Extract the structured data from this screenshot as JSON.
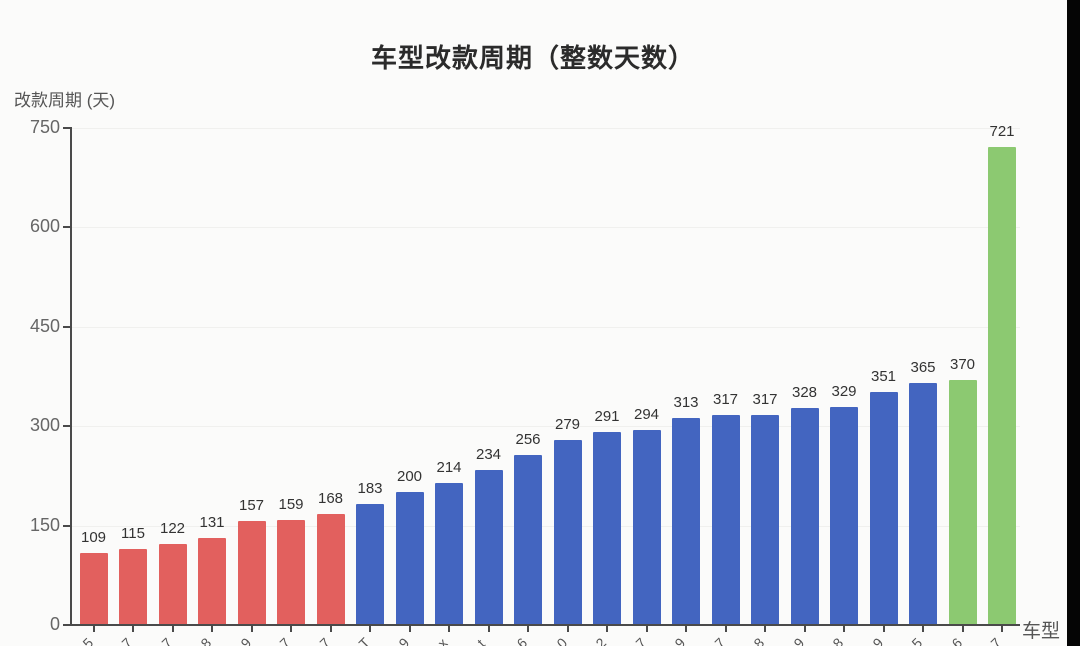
{
  "chart_data": {
    "type": "bar",
    "title": "车型改款周期（整数天数）",
    "ylabel": "改款周期 (天)",
    "xlabel": "车型",
    "ylim": [
      0,
      750
    ],
    "yticks": [
      0,
      150,
      300,
      450,
      600,
      750
    ],
    "grid": "faint-horizontal",
    "legend": "none",
    "values": [
      109,
      115,
      122,
      131,
      157,
      159,
      168,
      183,
      200,
      214,
      234,
      256,
      279,
      291,
      294,
      313,
      317,
      317,
      328,
      329,
      351,
      365,
      370,
      721
    ],
    "bar_color_groups": [
      "red",
      "red",
      "red",
      "red",
      "red",
      "red",
      "red",
      "blue",
      "blue",
      "blue",
      "blue",
      "blue",
      "blue",
      "blue",
      "blue",
      "blue",
      "blue",
      "blue",
      "blue",
      "blue",
      "blue",
      "blue",
      "green",
      "green"
    ],
    "colors": {
      "red": "#e2605e",
      "blue": "#4365c0",
      "green": "#8cc971",
      "axis": "#4a4a4a",
      "tick_text": "#666666",
      "value_text": "#333333",
      "background": "#fbfbfa"
    },
    "xtick_labels_cut_off": true,
    "xtick_visible_fragments": [
      "5",
      "7",
      "7",
      "8",
      "9",
      "7",
      "7",
      "T",
      "9",
      "x",
      "t",
      "6",
      "0",
      "2",
      "7",
      "9",
      "7",
      "8",
      "9",
      "8",
      "9",
      "5",
      "6",
      "7"
    ]
  }
}
